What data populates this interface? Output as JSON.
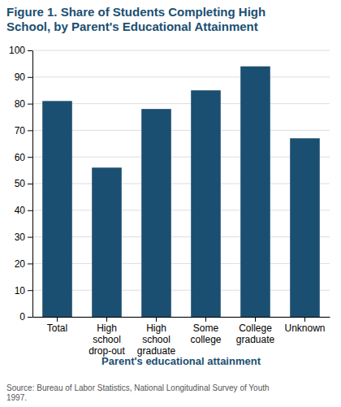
{
  "chart_data": {
    "type": "bar",
    "title": "Figure 1. Share of Students Completing High\nSchool, by Parent's Educational Attainment",
    "categories": [
      "Total",
      "High\nschool\ndrop-out",
      "High\nschool\ngraduate",
      "Some\ncollege",
      "College\ngraduate",
      "Unknown"
    ],
    "values": [
      81,
      56,
      78,
      85,
      94,
      67
    ],
    "color": "#1b4f72",
    "xlabel": "Parent's educational attainment",
    "annotations": [
      "Source: Bureau of Labor Statistics, National Longitudinal Survey of Youth\n1997."
    ],
    "ylim": [
      0,
      100
    ],
    "yticks": [
      0,
      10,
      20,
      30,
      40,
      50,
      60,
      70,
      80,
      90,
      100
    ],
    "grid": true
  }
}
